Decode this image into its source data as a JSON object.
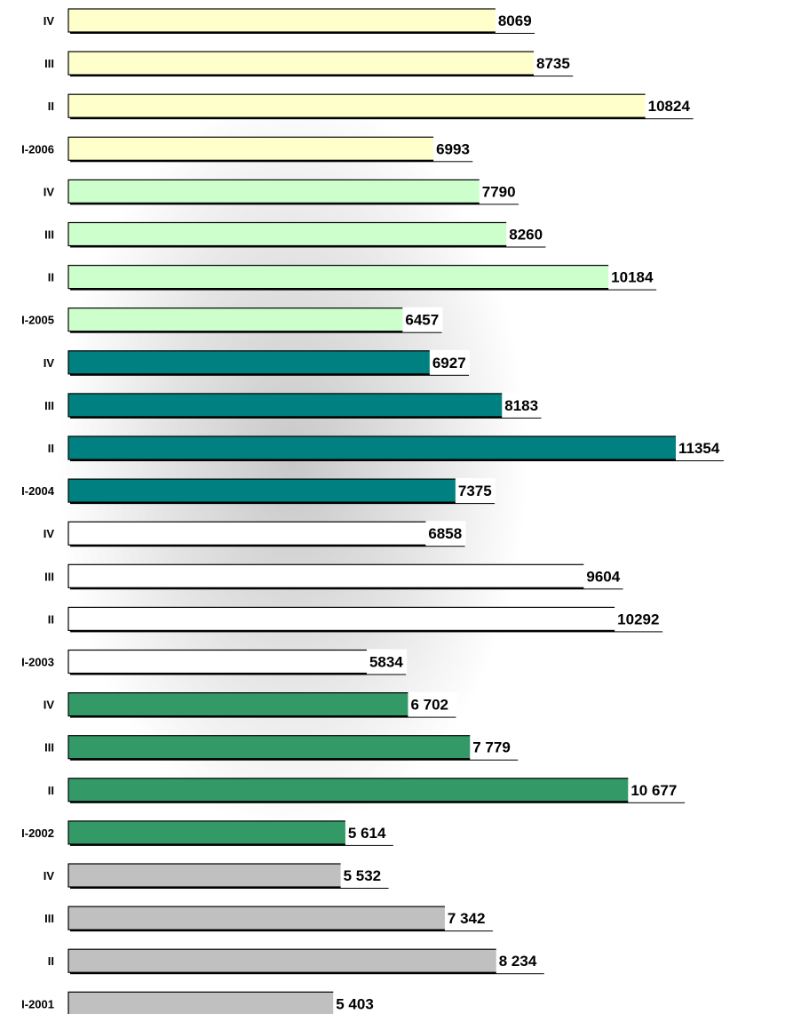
{
  "chart_data": {
    "type": "bar",
    "orientation": "horizontal",
    "grid": false,
    "legend": "none",
    "categories": [
      "IV",
      "III",
      "II",
      "I-2006",
      "IV",
      "III",
      "II",
      "I-2005",
      "IV",
      "III",
      "II",
      "I-2004",
      "IV",
      "III",
      "II",
      "I-2003",
      "IV",
      "III",
      "II",
      "I-2002",
      "IV",
      "III",
      "II",
      "I-2001"
    ],
    "values": [
      8069,
      8735,
      10824,
      6993,
      7790,
      8260,
      10184,
      6457,
      6927,
      8183,
      11354,
      7375,
      6858,
      9604,
      10292,
      5834,
      6702,
      7779,
      10677,
      5614,
      5532,
      7342,
      8234,
      5403
    ],
    "value_labels": [
      "8069",
      "8735",
      "10824",
      "6993",
      "7790",
      "8260",
      "10184",
      "6457",
      "6927",
      "8183",
      "11354",
      "7375",
      "6858",
      "9604",
      "10292",
      "5834",
      "6 702",
      "7 779",
      "10 677",
      "5 614",
      "5 532",
      "7 342",
      "8 234",
      "5 403"
    ],
    "year_groups": [
      {
        "year": "2006",
        "color": "#ffffcc"
      },
      {
        "year": "2005",
        "color": "#ccffcc"
      },
      {
        "year": "2004",
        "color": "#008080"
      },
      {
        "year": "2003",
        "color": "#ffffff"
      },
      {
        "year": "2002",
        "color": "#339966"
      },
      {
        "year": "2001",
        "color": "#c0c0c0"
      }
    ],
    "xlim": [
      0,
      11800
    ]
  }
}
